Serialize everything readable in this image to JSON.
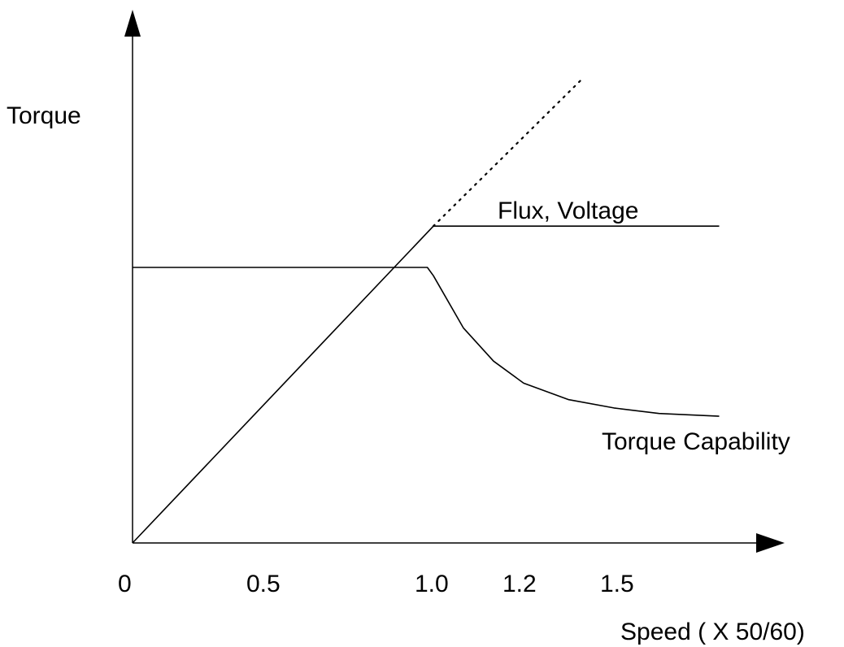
{
  "chart_data": {
    "type": "line",
    "xlabel": "Speed ( X 50/60)",
    "ylabel": "Torque",
    "x_ticks": [
      "0",
      "0.5",
      "1.0",
      "1.2",
      "1.5"
    ],
    "grid": false,
    "series": [
      {
        "name": "Flux, Voltage",
        "style": "solid",
        "points": [
          [
            0,
            0
          ],
          [
            1.0,
            1.15
          ],
          [
            1.95,
            1.15
          ]
        ]
      },
      {
        "name": "",
        "style": "dotted",
        "points": [
          [
            1.0,
            1.15
          ],
          [
            1.5,
            1.69
          ]
        ]
      },
      {
        "name": "Torque Capability",
        "style": "solid",
        "points": [
          [
            0,
            1.0
          ],
          [
            0.98,
            1.0
          ],
          [
            1.0,
            0.97
          ],
          [
            1.1,
            0.78
          ],
          [
            1.2,
            0.66
          ],
          [
            1.3,
            0.58
          ],
          [
            1.45,
            0.52
          ],
          [
            1.6,
            0.49
          ],
          [
            1.75,
            0.47
          ],
          [
            1.95,
            0.46
          ]
        ]
      }
    ],
    "annotations": [
      "Flux, Voltage",
      "Torque Capability"
    ]
  },
  "colors": {
    "line": "#000000",
    "background": "#ffffff"
  }
}
